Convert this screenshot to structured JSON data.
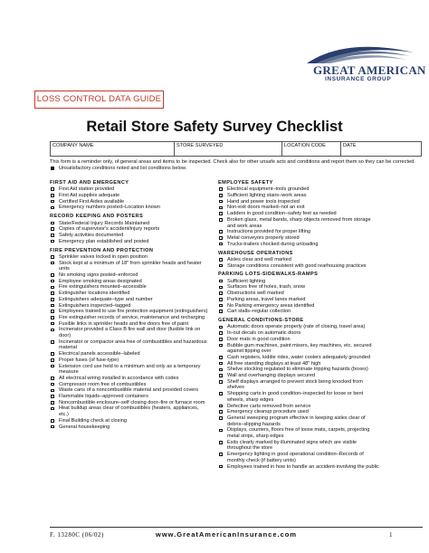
{
  "logo": {
    "brand": "GREAT AMERICAN",
    "group": "INSURANCE GROUP"
  },
  "guide_label": "LOSS CONTROL DATA GUIDE",
  "title": "Retail Store Safety Survey Checklist",
  "header_fields": [
    "COMPANY NAME",
    "STORE SURVEYED",
    "LOCATION CODE",
    "DATE"
  ],
  "reminder": "This form is a reminder only, of general areas and items to be inspected. Check also for other unsafe acts and conditions and report them so they can be corrected.",
  "legend": "Unsatisfactory conditions noted and list conditions below.",
  "left_sections": [
    {
      "title": "FIRST AID AND EMERGENCY",
      "items": [
        "First Aid station provided",
        "First Aid supplies adequate",
        "Certified First Aides available",
        "Emergency numbers posted–Location known"
      ]
    },
    {
      "title": "RECORD KEEPING AND POSTERS",
      "items": [
        "State/Federal Injury Records Maintained",
        "Copies of supervisor's accident/injury reports",
        "Safety activities documented",
        "Emergency plan established and posted"
      ]
    },
    {
      "title": "FIRE PREVENTION AND PROTECTION",
      "items": [
        "Sprinkler valves locked in open position",
        "Stock kept at a minimum of 18\" from sprinkler heads and heater units",
        "No smoking signs posted–enforced",
        "Employee smoking areas designated",
        "Fire extinguishers mounted–accessible",
        "Extinguisher locations identified",
        "Extinguishers adequate–type and number",
        "Extinguishers inspected–tagged",
        "Employees trained to use fire protection equipment (extinguishers)",
        "Fire extinguisher records of service, maintenance and recharging",
        "Fusible links in sprinkler heads and fire doors free of paint",
        "Incinerator provided a Class B fire wall and door (fusible link on door)",
        "Incinerator or compactor area free of combustibles and hazardous material",
        "Electrical panels accessible–labeled",
        "Proper fuses (of fuse-type)",
        "Extension cord use held to a minimum and only as a temporary measure",
        "All electrical wiring installed in accordance with codes",
        "Compressor room free of combustibles",
        "Waste cans of a noncombustible material and provided covers",
        "Flammable liquids–approved containers",
        "Noncombustible enclosure–self closing door–fire or furnace room",
        "Heat buildup areas clear of combustibles (heaters, appliances, etc.)",
        "Final Building check at closing",
        "General housekeeping"
      ]
    }
  ],
  "right_sections": [
    {
      "title": "EMPLOYEE SAFETY",
      "items": [
        "Electrical equipment–tools grounded",
        "Sufficient lighting stairs–work areas",
        "Hand and power tools inspected",
        "Non-exit doors marked–not an exit",
        "Ladders in good condition–safety feet as needed",
        "Broken glass, metal bands, sharp objects removed from storage and work areas",
        "Instructions provided for proper lifting",
        "Metal conveyors properly stored",
        "Trucks-trailers chocked during unloading"
      ]
    },
    {
      "title": "WAREHOUSE OPERATIONS",
      "items": [
        "Aisles clear and well marked",
        "Storage conditions consistent with good rearhousing practices"
      ]
    },
    {
      "title": "PARKING LOTS-SIDEWALKS-RAMPS",
      "items": [
        "Sufficient lighting",
        "Surfaces free of holes, trash, snow",
        "Obstructions well marked",
        "Parking areas, travel lanes marked",
        "No Parking emergency areas identified",
        "Cart stalls–regular collection"
      ]
    },
    {
      "title": "GENERAL CONDITIONS-STORE",
      "items": [
        "Automatic doors operate properly (rate of closing, travel area)",
        "In-out decals on automatic doors",
        "Door mats in good condition",
        "Bubble gum machines, paint mixers, key machines, etc. secured against tipping over",
        "Cash registers, kiddie rides, water coolers adequately grounded",
        "All free standing displays at least 48\" high",
        "Shelve stocking regulated to eliminate tripping hazards (boxes)",
        "Wall and overhanging displays secured",
        "Shelf displays arranged to prevent stock being knocked from shelves",
        "Shopping carts in good condition–inspected for loose or bent wheels, sharp edges",
        "Defective carts removed from service",
        "Emergency cleanup procedure used",
        "General sweeping program effective in keeping aisles clear of debris–slipping hazards",
        "Displays, counters, floors free of loose mats, carpets, projecting metal strips, sharp edges",
        "Exits clearly marked by illuminated signs which are visible throughout the store",
        "Emergency lighting in good operational condition–Records of monthly check (if battery units)",
        "Employees trained in how to handle an accident-involving the public"
      ]
    }
  ],
  "footer": {
    "form_number": "F. 13280C (06/02)",
    "url": "www.GreatAmericanInsurance.com",
    "page": "1"
  },
  "colors": {
    "accent_red": "#c0392b",
    "brand_navy": "#2b3f6e"
  }
}
